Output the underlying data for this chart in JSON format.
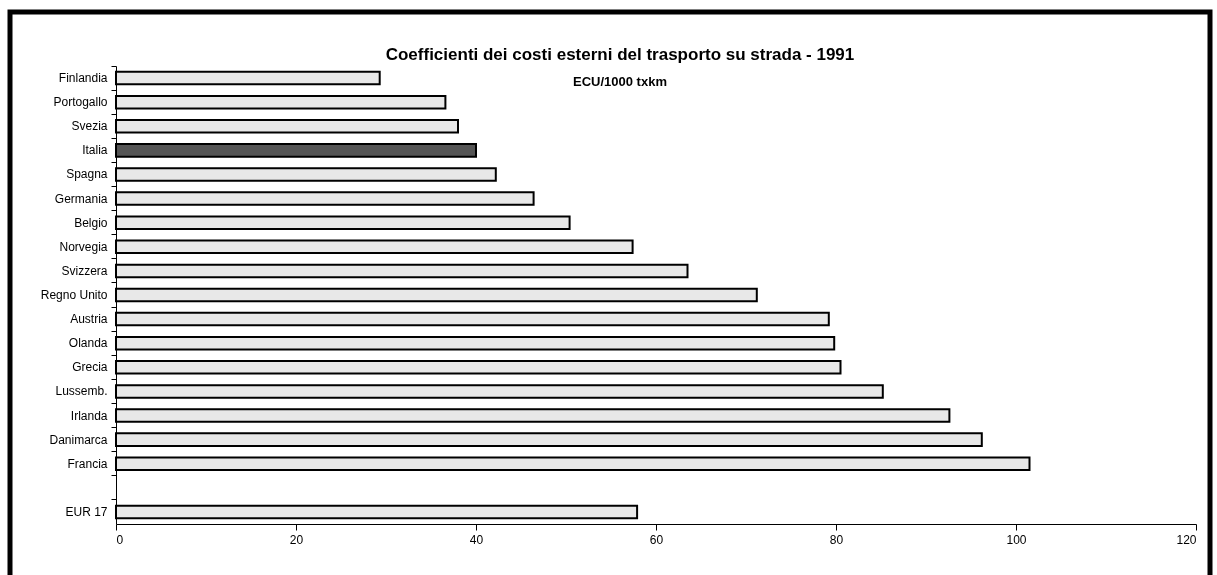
{
  "chart_data": {
    "type": "bar",
    "orientation": "horizontal",
    "title": "Coefficienti dei costi esterni del trasporto su strada - 1991",
    "subtitle": "ECU/1000 txkm",
    "categories": [
      "Finlandia",
      "Portogallo",
      "Svezia",
      "Italia",
      "Spagna",
      "Germania",
      "Belgio",
      "Norvegia",
      "Svizzera",
      "Regno Unito",
      "Austria",
      "Olanda",
      "Grecia",
      "Lussemb.",
      "Irlanda",
      "Danimarca",
      "Francia",
      null,
      "EUR 17"
    ],
    "values": [
      29.3,
      36.6,
      38.0,
      40.0,
      42.2,
      46.4,
      50.4,
      57.4,
      63.5,
      71.2,
      79.2,
      79.8,
      80.5,
      85.2,
      92.6,
      96.2,
      101.5,
      null,
      57.9
    ],
    "colors": [
      "#e8e8e8",
      "#e8e8e8",
      "#e8e8e8",
      "#555555",
      "#e8e8e8",
      "#e8e8e8",
      "#e8e8e8",
      "#e8e8e8",
      "#e8e8e8",
      "#e8e8e8",
      "#e8e8e8",
      "#e8e8e8",
      "#e8e8e8",
      "#e8e8e8",
      "#e8e8e8",
      "#e8e8e8",
      "#e8e8e8",
      null,
      "#e8e8e8"
    ],
    "xlim": [
      0,
      120
    ],
    "xticks": [
      0,
      20,
      40,
      60,
      80,
      100,
      120
    ],
    "grid": false
  }
}
